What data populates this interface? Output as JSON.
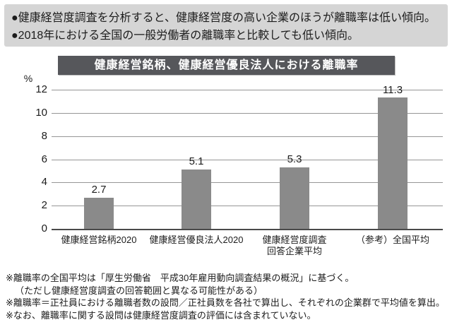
{
  "colors": {
    "header_bg": "#d5d5d5",
    "title_bg": "#56575b",
    "bar": "#8a8a8a",
    "gridline": "#969696",
    "axis": "#4a4a4a",
    "text": "#1c1c1c"
  },
  "header": {
    "bullets": [
      "●健康経営度調査を分析すると、健康経営度の高い企業のほうが離職率は低い傾向。",
      "●2018年における全国の一般労働者の離職率と比較しても低い傾向。"
    ]
  },
  "chart_data": {
    "type": "bar",
    "title": "健康経営銘柄、健康経営優良法人における離職率",
    "categories": [
      "健康経営銘柄2020",
      "健康経営優良法人2020",
      "健康経営度調査\n回答企業平均",
      "（参考）全国平均"
    ],
    "values": [
      2.7,
      5.1,
      5.3,
      11.3
    ],
    "value_labels": [
      "2.7",
      "5.1",
      "5.3",
      "11.3"
    ],
    "xlabel": "",
    "ylabel": "%",
    "ylim": [
      0,
      12
    ],
    "y_ticks": [
      12,
      10,
      8,
      6,
      4,
      2,
      0
    ],
    "grid": true,
    "legend": "none",
    "bar_color": "#8a8a8a"
  },
  "notes": [
    "※離職率の全国平均は「厚生労働省　平成30年雇用動向調査結果の概況」に基づく。",
    "（ただし健康経営度調査の回答範囲と異なる可能性がある）",
    "※離職率＝正社員における離職者数の設問／正社員数を各社で算出し、それぞれの企業群で平均値を算出。",
    "※なお、離職率に関する設問は健康経営度調査の評価には含まれていない。"
  ]
}
